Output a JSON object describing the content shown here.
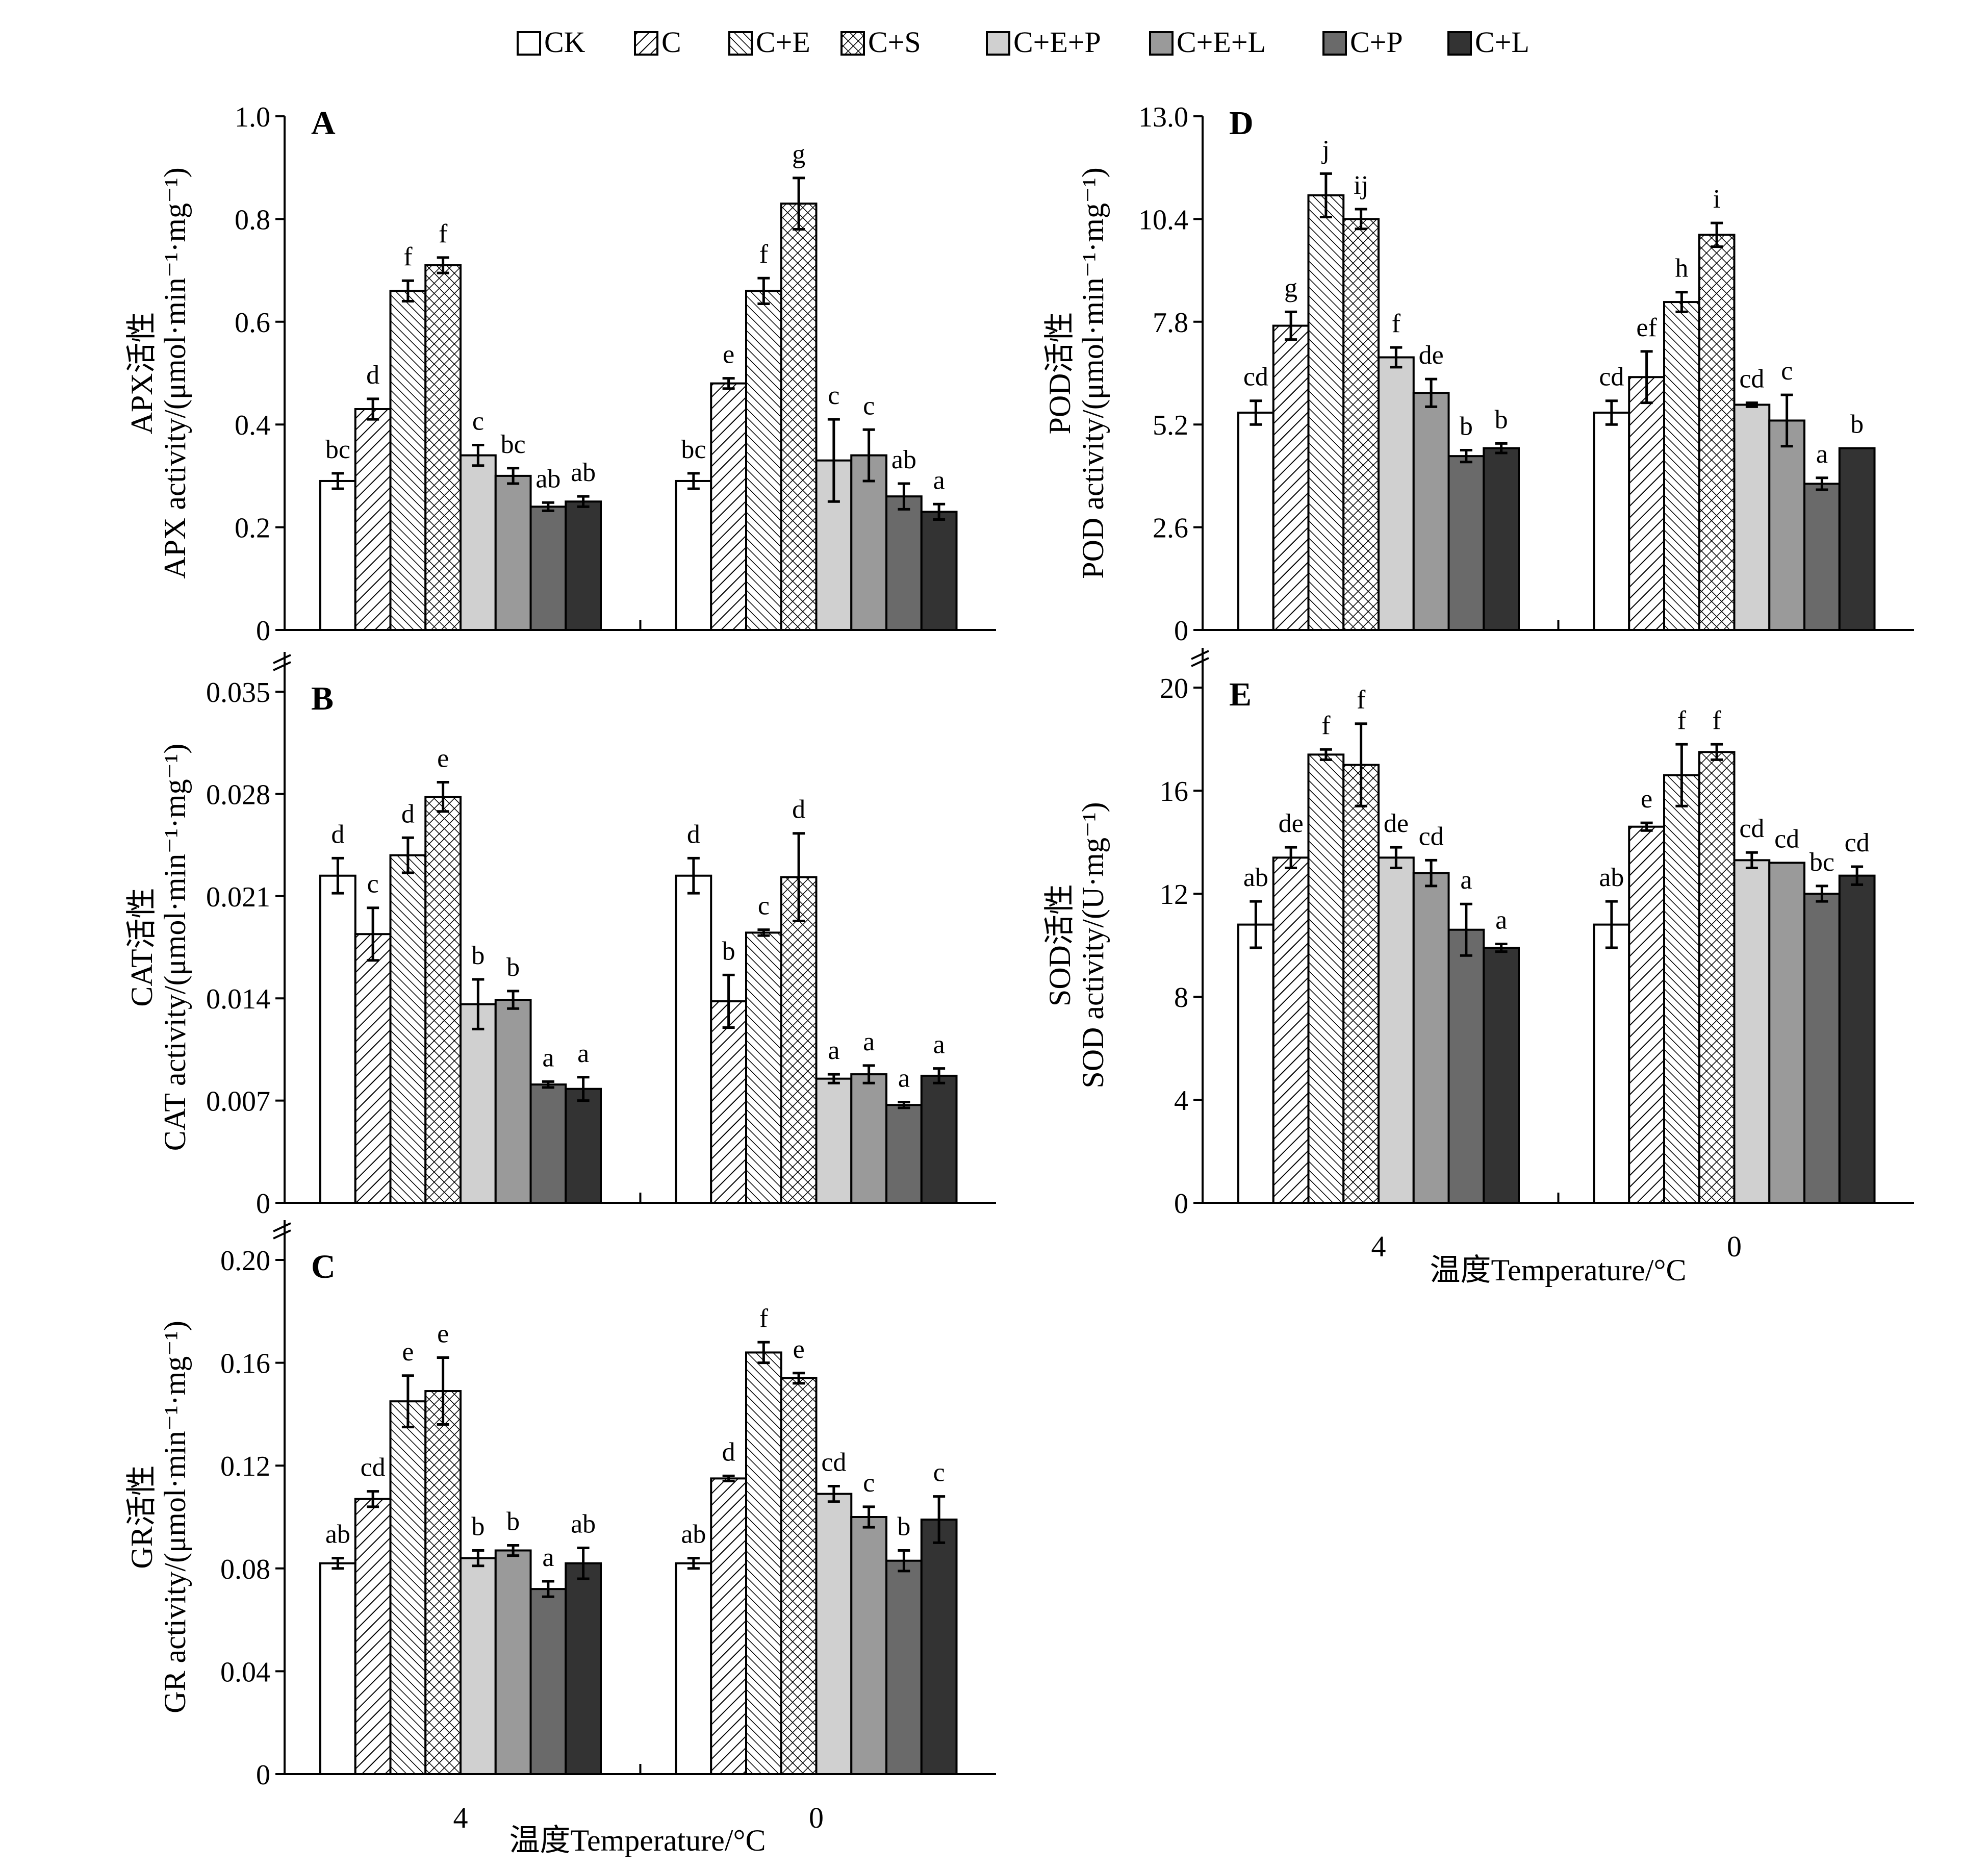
{
  "legend": [
    {
      "label": "CK",
      "pattern": "white"
    },
    {
      "label": "C",
      "pattern": "fwd"
    },
    {
      "label": "C+E",
      "pattern": "back"
    },
    {
      "label": "C+S",
      "pattern": "cross"
    },
    {
      "label": "C+E+P",
      "pattern": "light"
    },
    {
      "label": "C+E+L",
      "pattern": "mid"
    },
    {
      "label": "C+P",
      "pattern": "dark"
    },
    {
      "label": "C+L",
      "pattern": "darkest"
    }
  ],
  "colors": {
    "white": "#ffffff",
    "light": "#d0d0d0",
    "mid": "#9a9a9a",
    "dark": "#6a6a6a",
    "darkest": "#333333",
    "stroke": "#000000"
  },
  "x_title": "温度Temperature/°C",
  "chart_data": [
    {
      "id": "A",
      "type": "bar",
      "panel_letter": "A",
      "ylabel_cn": "APX活性",
      "ylabel_en": "APX activity/(μmol·min⁻¹·mg⁻¹)",
      "ylim": [
        0,
        1.0
      ],
      "ticks": [
        "0",
        "0.2",
        "0.4",
        "0.6",
        "0.8",
        "1.0"
      ],
      "categories": [
        "4",
        "0"
      ],
      "series": [
        {
          "name": "CK",
          "values": [
            0.29,
            0.29
          ],
          "errors": [
            0.015,
            0.015
          ],
          "labels": [
            "bc",
            "bc"
          ]
        },
        {
          "name": "C",
          "values": [
            0.43,
            0.48
          ],
          "errors": [
            0.02,
            0.01
          ],
          "labels": [
            "d",
            "e"
          ]
        },
        {
          "name": "C+E",
          "values": [
            0.66,
            0.66
          ],
          "errors": [
            0.02,
            0.025
          ],
          "labels": [
            "f",
            "f"
          ]
        },
        {
          "name": "C+S",
          "values": [
            0.71,
            0.83
          ],
          "errors": [
            0.015,
            0.05
          ],
          "labels": [
            "f",
            "g"
          ]
        },
        {
          "name": "C+E+P",
          "values": [
            0.34,
            0.33
          ],
          "errors": [
            0.02,
            0.08
          ],
          "labels": [
            "c",
            "c"
          ]
        },
        {
          "name": "C+E+L",
          "values": [
            0.3,
            0.34
          ],
          "errors": [
            0.015,
            0.05
          ],
          "labels": [
            "bc",
            "c"
          ]
        },
        {
          "name": "C+P",
          "values": [
            0.24,
            0.26
          ],
          "errors": [
            0.008,
            0.025
          ],
          "labels": [
            "ab",
            "ab"
          ]
        },
        {
          "name": "C+L",
          "values": [
            0.25,
            0.23
          ],
          "errors": [
            0.01,
            0.015
          ],
          "labels": [
            "ab",
            "a"
          ]
        }
      ]
    },
    {
      "id": "B",
      "type": "bar",
      "panel_letter": "B",
      "ylabel_cn": "CAT活性",
      "ylabel_en": "CAT activity/(μmol·min⁻¹·mg⁻¹)",
      "ylim": [
        0,
        0.035
      ],
      "ticks": [
        "0",
        "0.007",
        "0.014",
        "0.021",
        "0.028",
        "0.035"
      ],
      "categories": [
        "4",
        "0"
      ],
      "series": [
        {
          "name": "CK",
          "values": [
            0.0224,
            0.0224
          ],
          "errors": [
            0.0012,
            0.0012
          ],
          "labels": [
            "d",
            "d"
          ]
        },
        {
          "name": "C",
          "values": [
            0.0184,
            0.0138
          ],
          "errors": [
            0.0018,
            0.0018
          ],
          "labels": [
            "c",
            "b"
          ]
        },
        {
          "name": "C+E",
          "values": [
            0.0238,
            0.0185
          ],
          "errors": [
            0.0012,
            0.0002
          ],
          "labels": [
            "d",
            "c"
          ]
        },
        {
          "name": "C+S",
          "values": [
            0.0278,
            0.0223
          ],
          "errors": [
            0.001,
            0.003
          ],
          "labels": [
            "e",
            "d"
          ]
        },
        {
          "name": "C+E+P",
          "values": [
            0.0136,
            0.0085
          ],
          "errors": [
            0.0017,
            0.0003
          ],
          "labels": [
            "b",
            "a"
          ]
        },
        {
          "name": "C+E+L",
          "values": [
            0.0139,
            0.0088
          ],
          "errors": [
            0.0006,
            0.0006
          ],
          "labels": [
            "b",
            "a"
          ]
        },
        {
          "name": "C+P",
          "values": [
            0.0081,
            0.0067
          ],
          "errors": [
            0.0002,
            0.0002
          ],
          "labels": [
            "a",
            "a"
          ]
        },
        {
          "name": "C+L",
          "values": [
            0.0078,
            0.0087
          ],
          "errors": [
            0.0008,
            0.0005
          ],
          "labels": [
            "a",
            "a"
          ]
        }
      ]
    },
    {
      "id": "C",
      "type": "bar",
      "panel_letter": "C",
      "ylabel_cn": "GR活性",
      "ylabel_en": "GR activity/(μmol·min⁻¹·mg⁻¹)",
      "ylim": [
        0,
        0.2
      ],
      "ticks": [
        "0",
        "0.04",
        "0.08",
        "0.12",
        "0.16",
        "0.20"
      ],
      "categories": [
        "4",
        "0"
      ],
      "series": [
        {
          "name": "CK",
          "values": [
            0.082,
            0.082
          ],
          "errors": [
            0.002,
            0.002
          ],
          "labels": [
            "ab",
            "ab"
          ]
        },
        {
          "name": "C",
          "values": [
            0.107,
            0.115
          ],
          "errors": [
            0.003,
            0.001
          ],
          "labels": [
            "cd",
            "d"
          ]
        },
        {
          "name": "C+E",
          "values": [
            0.145,
            0.164
          ],
          "errors": [
            0.01,
            0.004
          ],
          "labels": [
            "e",
            "f"
          ]
        },
        {
          "name": "C+S",
          "values": [
            0.149,
            0.154
          ],
          "errors": [
            0.013,
            0.002
          ],
          "labels": [
            "e",
            "e"
          ]
        },
        {
          "name": "C+E+P",
          "values": [
            0.084,
            0.109
          ],
          "errors": [
            0.003,
            0.003
          ],
          "labels": [
            "b",
            "cd"
          ]
        },
        {
          "name": "C+E+L",
          "values": [
            0.087,
            0.1
          ],
          "errors": [
            0.002,
            0.004
          ],
          "labels": [
            "b",
            "c"
          ]
        },
        {
          "name": "C+P",
          "values": [
            0.072,
            0.083
          ],
          "errors": [
            0.003,
            0.004
          ],
          "labels": [
            "a",
            "b"
          ]
        },
        {
          "name": "C+L",
          "values": [
            0.082,
            0.099
          ],
          "errors": [
            0.006,
            0.009
          ],
          "labels": [
            "ab",
            "c"
          ]
        }
      ]
    },
    {
      "id": "D",
      "type": "bar",
      "panel_letter": "D",
      "ylabel_cn": "POD活性",
      "ylabel_en": "POD activity/(μmol·min⁻¹·mg⁻¹)",
      "ylim": [
        0,
        13.0
      ],
      "ticks": [
        "0",
        "2.6",
        "5.2",
        "7.8",
        "10.4",
        "13.0"
      ],
      "categories": [
        "4",
        "0"
      ],
      "series": [
        {
          "name": "CK",
          "values": [
            5.5,
            5.5
          ],
          "errors": [
            0.3,
            0.3
          ],
          "labels": [
            "cd",
            "cd"
          ]
        },
        {
          "name": "C",
          "values": [
            7.7,
            6.4
          ],
          "errors": [
            0.35,
            0.65
          ],
          "labels": [
            "g",
            "ef"
          ]
        },
        {
          "name": "C+E",
          "values": [
            11.0,
            8.3
          ],
          "errors": [
            0.55,
            0.25
          ],
          "labels": [
            "j",
            "h"
          ]
        },
        {
          "name": "C+S",
          "values": [
            10.4,
            10.0
          ],
          "errors": [
            0.25,
            0.3
          ],
          "labels": [
            "ij",
            "i"
          ]
        },
        {
          "name": "C+E+P",
          "values": [
            6.9,
            5.7
          ],
          "errors": [
            0.25,
            0.05
          ],
          "labels": [
            "f",
            "cd"
          ]
        },
        {
          "name": "C+E+L",
          "values": [
            6.0,
            5.3
          ],
          "errors": [
            0.35,
            0.65
          ],
          "labels": [
            "de",
            "c"
          ]
        },
        {
          "name": "C+P",
          "values": [
            4.4,
            3.7
          ],
          "errors": [
            0.15,
            0.15
          ],
          "labels": [
            "b",
            "a"
          ]
        },
        {
          "name": "C+L",
          "values": [
            4.6,
            4.6
          ],
          "errors": [
            0.12,
            0.0
          ],
          "labels": [
            "b",
            "b"
          ]
        }
      ]
    },
    {
      "id": "E",
      "type": "bar",
      "panel_letter": "E",
      "ylabel_cn": "SOD活性",
      "ylabel_en": "SOD activity/(U·mg⁻¹)",
      "ylim": [
        0,
        20
      ],
      "ticks": [
        "0",
        "4",
        "8",
        "12",
        "16",
        "20"
      ],
      "categories": [
        "4",
        "0"
      ],
      "series": [
        {
          "name": "CK",
          "values": [
            10.8,
            10.8
          ],
          "errors": [
            0.9,
            0.9
          ],
          "labels": [
            "ab",
            "ab"
          ]
        },
        {
          "name": "C",
          "values": [
            13.4,
            14.6
          ],
          "errors": [
            0.4,
            0.15
          ],
          "labels": [
            "de",
            "e"
          ]
        },
        {
          "name": "C+E",
          "values": [
            17.4,
            16.6
          ],
          "errors": [
            0.2,
            1.2
          ],
          "labels": [
            "f",
            "f"
          ]
        },
        {
          "name": "C+S",
          "values": [
            17.0,
            17.5
          ],
          "errors": [
            1.6,
            0.3
          ],
          "labels": [
            "f",
            "f"
          ]
        },
        {
          "name": "C+E+P",
          "values": [
            13.4,
            13.3
          ],
          "errors": [
            0.4,
            0.3
          ],
          "labels": [
            "de",
            "cd"
          ]
        },
        {
          "name": "C+E+L",
          "values": [
            12.8,
            13.2
          ],
          "errors": [
            0.5,
            0.0
          ],
          "labels": [
            "cd",
            "cd"
          ]
        },
        {
          "name": "C+P",
          "values": [
            10.6,
            12.0
          ],
          "errors": [
            1.0,
            0.3
          ],
          "labels": [
            "a",
            "bc"
          ]
        },
        {
          "name": "C+L",
          "values": [
            9.9,
            12.7
          ],
          "errors": [
            0.15,
            0.35
          ],
          "labels": [
            "a",
            "cd"
          ]
        }
      ]
    }
  ]
}
